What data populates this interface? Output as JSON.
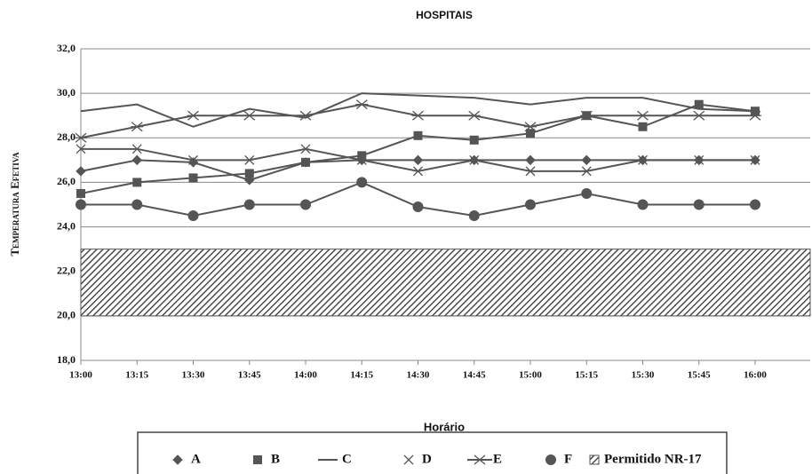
{
  "chart_data": {
    "type": "line",
    "title": "HOSPITAIS",
    "x_label": "Horário",
    "y_label": "Temperatura Efetiva",
    "categories": [
      "13:00",
      "13:15",
      "13:30",
      "13:45",
      "14:00",
      "14:15",
      "14:30",
      "14:45",
      "15:00",
      "15:15",
      "15:30",
      "15:45",
      "16:00"
    ],
    "series": [
      {
        "name": "A",
        "color": "#555555",
        "marker": "diamond",
        "values": [
          26.5,
          27,
          26.9,
          26.1,
          26.9,
          27,
          27,
          27,
          27,
          27,
          27,
          27,
          27
        ]
      },
      {
        "name": "B",
        "color": "#555555",
        "marker": "square",
        "values": [
          25.5,
          26,
          26.2,
          26.4,
          26.9,
          27.2,
          28.1,
          27.9,
          28.2,
          29,
          28.5,
          29.5,
          29.2
        ]
      },
      {
        "name": "C",
        "color": "#555555",
        "marker": "none",
        "values": [
          29.2,
          29.5,
          28.5,
          29.3,
          28.9,
          30,
          29.9,
          29.8,
          29.5,
          29.8,
          29.8,
          29.3,
          29.2
        ]
      },
      {
        "name": "D",
        "color": "#555555",
        "marker": "x",
        "values": [
          27.5,
          27.5,
          27,
          27,
          27.5,
          27,
          26.5,
          27,
          26.5,
          26.5,
          27,
          27,
          27
        ]
      },
      {
        "name": "E",
        "color": "#555555",
        "marker": "asterisk",
        "values": [
          28,
          28.5,
          29,
          29,
          29,
          29.5,
          29,
          29,
          28.5,
          29,
          29,
          29,
          29
        ]
      },
      {
        "name": "F",
        "color": "#555555",
        "marker": "circle",
        "values": [
          25,
          25,
          24.5,
          25,
          25,
          26,
          24.9,
          24.5,
          25,
          25.5,
          25,
          25,
          25
        ]
      }
    ],
    "band": {
      "name": "Permitido NR-17",
      "range": [
        20,
        23
      ],
      "color": "#555555"
    },
    "ylim": [
      18,
      32
    ],
    "yticks": [
      {
        "value": 18,
        "label": "18,0"
      },
      {
        "value": 20,
        "label": "20,0"
      },
      {
        "value": 22,
        "label": "22,0"
      },
      {
        "value": 24,
        "label": "24,0"
      },
      {
        "value": 26,
        "label": "26,0"
      },
      {
        "value": 28,
        "label": "28,0"
      },
      {
        "value": 30,
        "label": "30,0"
      },
      {
        "value": 32,
        "label": "32,0"
      }
    ],
    "grid": true
  }
}
